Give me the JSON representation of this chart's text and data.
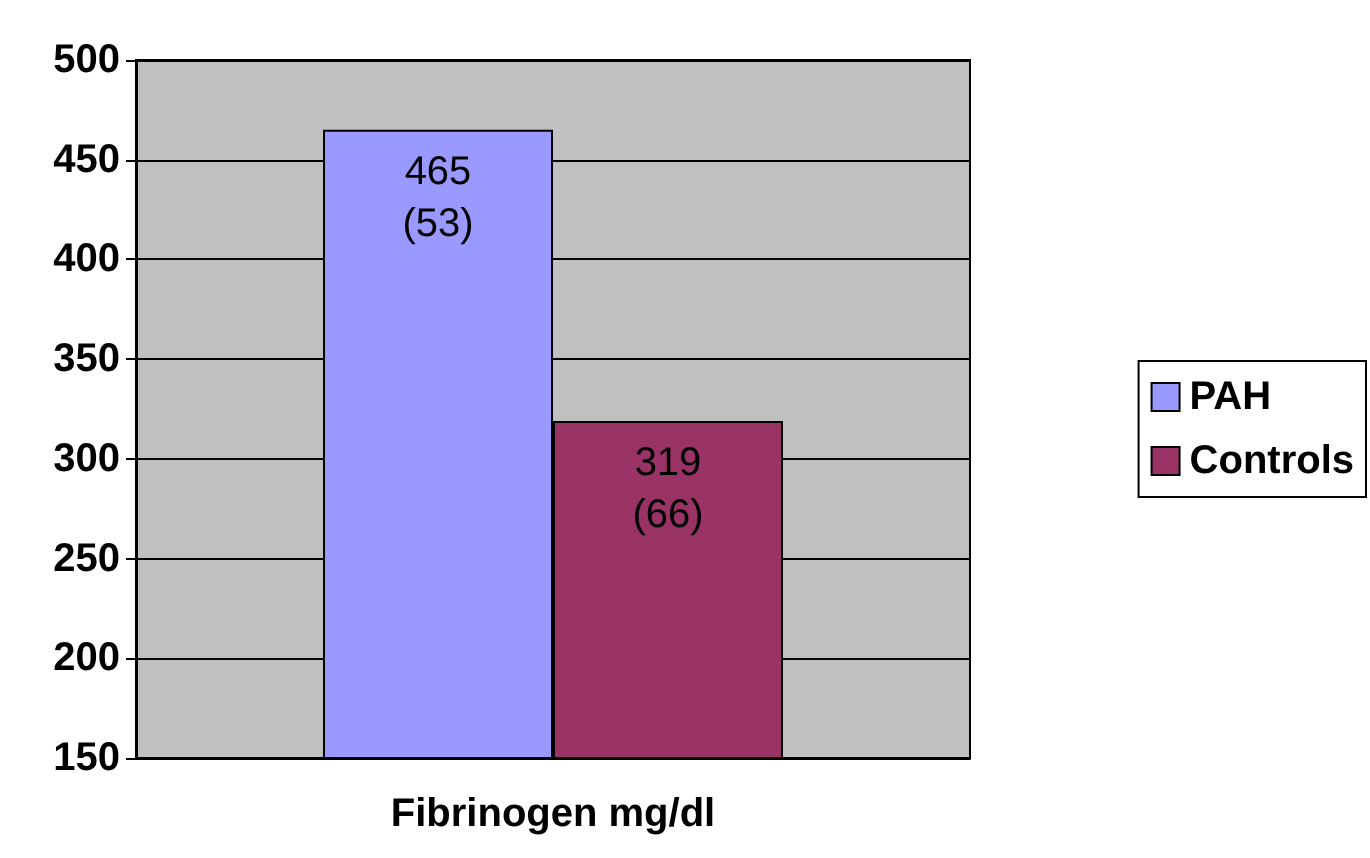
{
  "chart_data": {
    "type": "bar",
    "categories": [
      "Fibrinogen mg/dl"
    ],
    "series": [
      {
        "name": "PAH",
        "color": "#9999ff",
        "values": [
          465
        ],
        "value_labels": [
          "465\n(53)"
        ]
      },
      {
        "name": "Controls",
        "color": "#993366",
        "values": [
          319
        ],
        "value_labels": [
          "319\n(66)"
        ]
      }
    ],
    "ylim": [
      150,
      500
    ],
    "yticks": [
      150,
      200,
      250,
      300,
      350,
      400,
      450,
      500
    ],
    "grid": "y",
    "legend": "right"
  }
}
